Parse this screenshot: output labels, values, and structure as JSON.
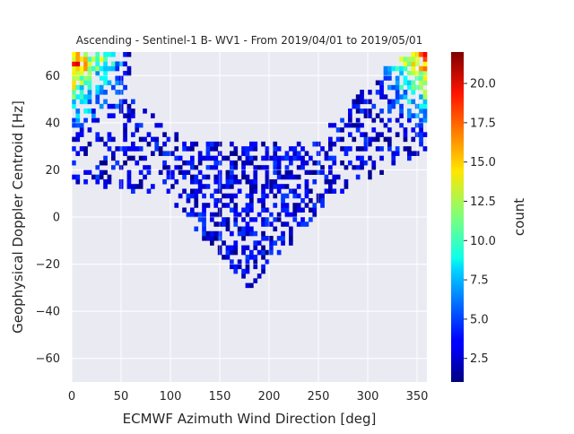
{
  "chart_data": {
    "type": "heatmap",
    "title": "Ascending - Sentinel-1 B- WV1 - From 2019/04/01 to 2019/05/01",
    "xlabel": "ECMWF Azimuth Wind Direction [deg]",
    "ylabel": "Geophysical Doppler Centroid [Hz]",
    "xlim": [
      0,
      360
    ],
    "ylim": [
      -70,
      70
    ],
    "xticks": [
      0,
      50,
      100,
      150,
      200,
      250,
      300,
      350
    ],
    "yticks": [
      -60,
      -40,
      -20,
      0,
      20,
      40,
      60
    ],
    "grid": true,
    "colormap": "jet",
    "background_color": "#eaeaf2",
    "colorbar": {
      "label": "count",
      "range": [
        1,
        22
      ],
      "ticks": [
        "2.5",
        "5.0",
        "7.5",
        "10.0",
        "12.5",
        "15.0",
        "17.5",
        "20.0"
      ]
    },
    "bin_width_x": 4,
    "bin_height_y": 2,
    "approximate_distribution": {
      "description_of_bins": "counts peak near x=0-40 and x=330-360 with y=40-70; a sparse V-shaped band descends to y around -25 near x=150-220",
      "max_count": 21
    }
  }
}
